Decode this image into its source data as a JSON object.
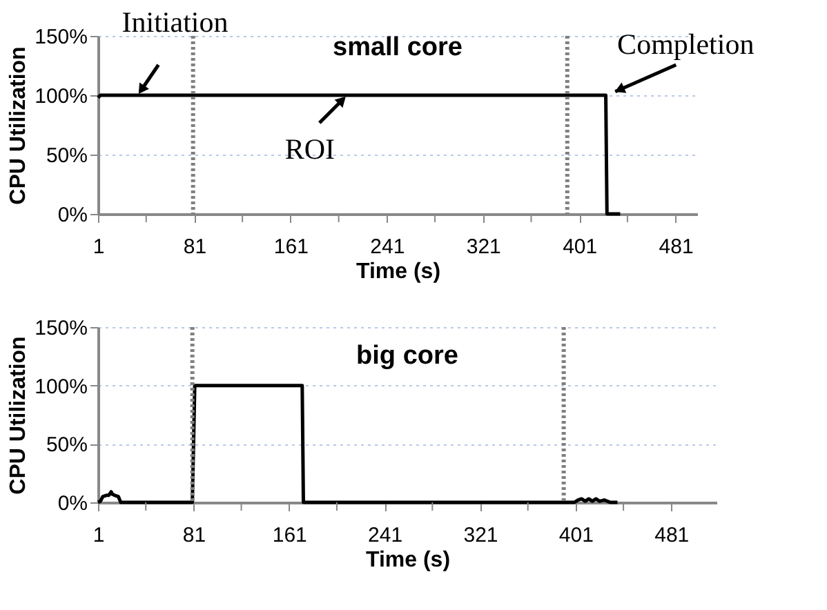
{
  "chart_data": [
    {
      "type": "line",
      "title": "small core",
      "xlabel": "Time (s)",
      "ylabel": "CPU Utilization",
      "x": [
        1,
        3,
        423,
        424,
        435
      ],
      "series": [
        {
          "color": "#000000",
          "values": [
            98,
            100,
            100,
            0,
            0
          ]
        }
      ],
      "xlim": [
        1,
        499
      ],
      "xticks": [
        1,
        {
          "value": 41,
          "label": null
        },
        81,
        {
          "value": 121,
          "label": null
        },
        161,
        {
          "value": 201,
          "label": null
        },
        241,
        {
          "value": 281,
          "label": null
        },
        321,
        {
          "value": 361,
          "label": null
        },
        401,
        {
          "value": 441,
          "label": null
        },
        481
      ],
      "ylim": [
        0,
        150
      ],
      "yticks": [
        {
          "value": 0,
          "label": "0%"
        },
        {
          "value": 50,
          "label": "50%"
        },
        {
          "value": 100,
          "label": "100%"
        },
        {
          "value": 150,
          "label": "150%"
        }
      ],
      "grid": "y",
      "marker": "none",
      "line_style": "solid",
      "ref_lines": [
        {
          "axis": "x",
          "value": 80,
          "color": "#808080",
          "line_style": "dotted"
        },
        {
          "axis": "x",
          "value": 391,
          "color": "#808080",
          "line_style": "dotted"
        }
      ],
      "annotations": [
        {
          "text": "Initiation",
          "x": 34,
          "y": 100
        },
        {
          "text": "ROI",
          "x": 208,
          "y": 100
        },
        {
          "text": "Completion",
          "x": 424,
          "y": 100
        }
      ]
    },
    {
      "type": "line",
      "title": "big core",
      "xlabel": "Time (s)",
      "ylabel": "CPU Utilization",
      "x": [
        1,
        3,
        5,
        8,
        10,
        12,
        13,
        15,
        18,
        20,
        40,
        60,
        80,
        82,
        100,
        140,
        172,
        173,
        200,
        250,
        300,
        350,
        400,
        403,
        406,
        409,
        412,
        415,
        418,
        421,
        425,
        430,
        436
      ],
      "series": [
        {
          "color": "#000000",
          "values": [
            0,
            1,
            5,
            6,
            6,
            9,
            7,
            6,
            5,
            0,
            0,
            0,
            0,
            100,
            100,
            100,
            100,
            0,
            0,
            0,
            0,
            0,
            0,
            2,
            3,
            1,
            3,
            1,
            3,
            1,
            2,
            0,
            0
          ]
        }
      ],
      "xlim": [
        1,
        519
      ],
      "xticks": [
        1,
        {
          "value": 41,
          "label": null
        },
        81,
        {
          "value": 121,
          "label": null
        },
        161,
        {
          "value": 201,
          "label": null
        },
        241,
        {
          "value": 281,
          "label": null
        },
        321,
        {
          "value": 361,
          "label": null
        },
        401,
        {
          "value": 441,
          "label": null
        },
        481
      ],
      "ylim": [
        0,
        150
      ],
      "yticks": [
        {
          "value": 0,
          "label": "0%"
        },
        {
          "value": 50,
          "label": "50%"
        },
        {
          "value": 100,
          "label": "100%"
        },
        {
          "value": 150,
          "label": "150%"
        }
      ],
      "grid": "y",
      "marker": "none",
      "line_style": "solid",
      "ref_lines": [
        {
          "axis": "x",
          "value": 80,
          "color": "#808080",
          "line_style": "dotted"
        },
        {
          "axis": "x",
          "value": 391,
          "color": "#808080",
          "line_style": "dotted"
        }
      ]
    }
  ]
}
